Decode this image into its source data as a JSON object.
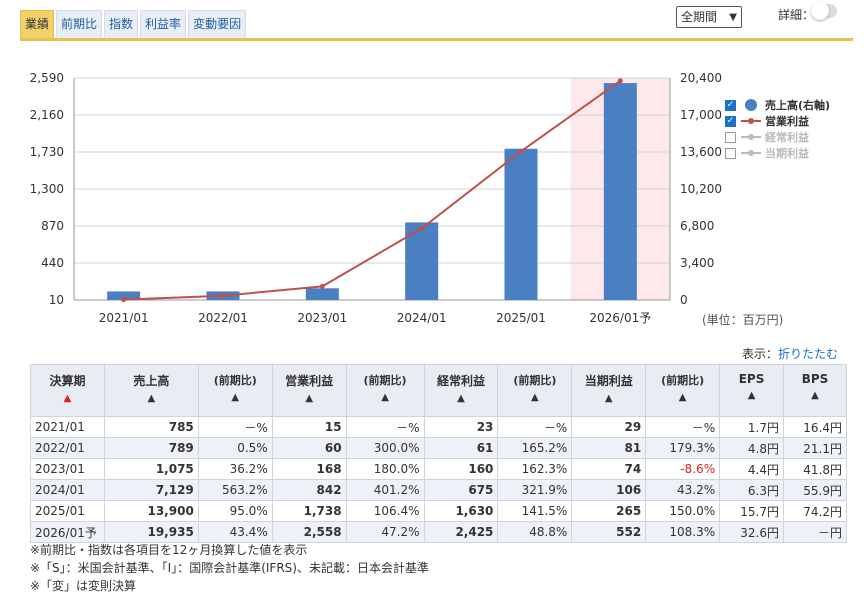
{
  "tabs": [
    "業績",
    "前期比",
    "指数",
    "利益率",
    "変動要因"
  ],
  "active_tab": 0,
  "period_select": {
    "value": "全期間"
  },
  "detail_label": "詳細：",
  "chart_data": {
    "type": "bar",
    "categories": [
      "2021/01",
      "2022/01",
      "2023/01",
      "2024/01",
      "2025/01",
      "2026/01予"
    ],
    "series": [
      {
        "name": "売上高(右軸)",
        "type": "bar",
        "axis": "right",
        "values": [
          785,
          789,
          1075,
          7129,
          13900,
          19935
        ],
        "color": "#4a7fc1"
      },
      {
        "name": "営業利益",
        "type": "line",
        "axis": "left",
        "values": [
          15,
          60,
          168,
          842,
          1738,
          2558
        ],
        "color": "#c0504d"
      }
    ],
    "y_left": {
      "ticks": [
        10,
        440,
        870,
        1300,
        1730,
        2160,
        2590
      ],
      "labels": [
        "10",
        "440",
        "870",
        "1,300",
        "1,730",
        "2,160",
        "2,590"
      ],
      "range": [
        10,
        2590
      ]
    },
    "y_right": {
      "ticks": [
        0,
        3400,
        6800,
        10200,
        13600,
        17000,
        20400
      ],
      "labels": [
        "0",
        "3,400",
        "6,800",
        "10,200",
        "13,600",
        "17,000",
        "20,400"
      ],
      "range": [
        0,
        20400
      ]
    },
    "grid": true,
    "forecast_index": 5,
    "legend_position": "right"
  },
  "legend": [
    {
      "label": "売上高(右軸)",
      "checked": true,
      "color": "#4a7fc1",
      "marker": "dot"
    },
    {
      "label": "営業利益",
      "checked": true,
      "color": "#c0504d",
      "marker": "line"
    },
    {
      "label": "経常利益",
      "checked": false,
      "color": "#bbbbbb",
      "marker": "line"
    },
    {
      "label": "当期利益",
      "checked": false,
      "color": "#bbbbbb",
      "marker": "line"
    }
  ],
  "unit_label": "(単位：百万円)",
  "show_label": "表示：",
  "collapse_link": "折りたたむ",
  "table": {
    "headers": [
      {
        "label": "決算期",
        "tri": "▲",
        "tri_color": "#e02020"
      },
      {
        "label": "売上高",
        "tri": "▲"
      },
      {
        "label": "(前期比)",
        "tri": "▲",
        "small": true
      },
      {
        "label": "営業利益",
        "tri": "▲"
      },
      {
        "label": "(前期比)",
        "tri": "▲",
        "small": true
      },
      {
        "label": "経常利益",
        "tri": "▲"
      },
      {
        "label": "(前期比)",
        "tri": "▲",
        "small": true
      },
      {
        "label": "当期利益",
        "tri": "▲"
      },
      {
        "label": "(前期比)",
        "tri": "▲",
        "small": true
      },
      {
        "label": "EPS",
        "tri": "▲"
      },
      {
        "label": "BPS",
        "tri": "▲"
      }
    ],
    "rows": [
      [
        "2021/01",
        "785",
        "－%",
        "15",
        "－%",
        "23",
        "－%",
        "29",
        "－%",
        "1.7円",
        "16.4円"
      ],
      [
        "2022/01",
        "789",
        "0.5%",
        "60",
        "300.0%",
        "61",
        "165.2%",
        "81",
        "179.3%",
        "4.8円",
        "21.1円"
      ],
      [
        "2023/01",
        "1,075",
        "36.2%",
        "168",
        "180.0%",
        "160",
        "162.3%",
        "74",
        "-8.6%",
        "4.4円",
        "41.8円"
      ],
      [
        "2024/01",
        "7,129",
        "563.2%",
        "842",
        "401.2%",
        "675",
        "321.9%",
        "106",
        "43.2%",
        "6.3円",
        "55.9円"
      ],
      [
        "2025/01",
        "13,900",
        "95.0%",
        "1,738",
        "106.4%",
        "1,630",
        "141.5%",
        "265",
        "150.0%",
        "15.7円",
        "74.2円"
      ],
      [
        "2026/01予",
        "19,935",
        "43.4%",
        "2,558",
        "47.2%",
        "2,425",
        "48.8%",
        "552",
        "108.3%",
        "32.6円",
        "－円"
      ]
    ]
  },
  "notes": [
    "※前期比・指数は各項目を12ヶ月換算した値を表示",
    "※「S」：米国会計基準、「I」：国際会計基準(IFRS)、未記載：日本会計基準",
    "※「変」は変則決算"
  ]
}
